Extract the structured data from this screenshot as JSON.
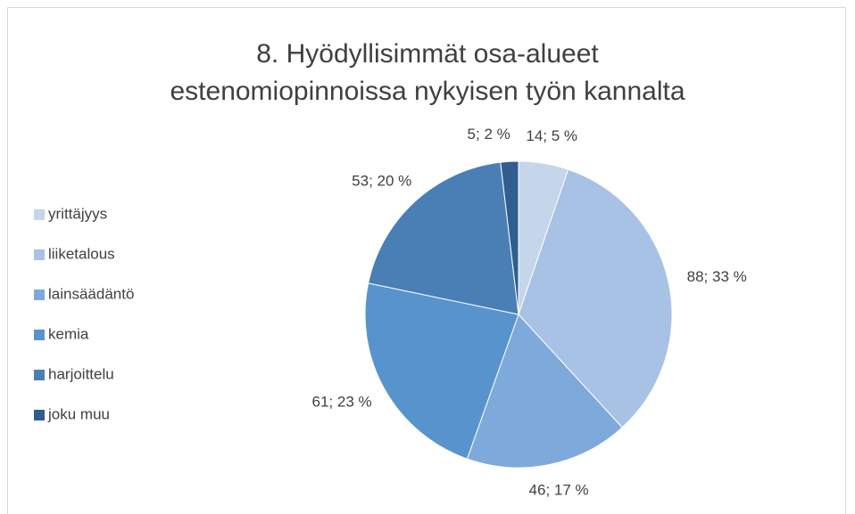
{
  "chart_data": {
    "type": "pie",
    "title": "8. Hyödyllisimmät osa-alueet estenomiopinnoissa nykyisen työn kannalta",
    "categories": [
      "yrittäjyys",
      "liiketalous",
      "lainsäädäntö",
      "kemia",
      "harjoittelu",
      "joku muu"
    ],
    "values": [
      14,
      88,
      46,
      61,
      53,
      5
    ],
    "value_labels": [
      "14; 5 %",
      "88; 33 %",
      "46; 17 %",
      "61; 23 %",
      "53; 20 %",
      "5; 2 %"
    ],
    "colors": [
      "#c5d5ea",
      "#a8c2e5",
      "#7ea9db",
      "#5794cd",
      "#4a7fb6",
      "#2f5e8f"
    ],
    "legend": "left"
  }
}
